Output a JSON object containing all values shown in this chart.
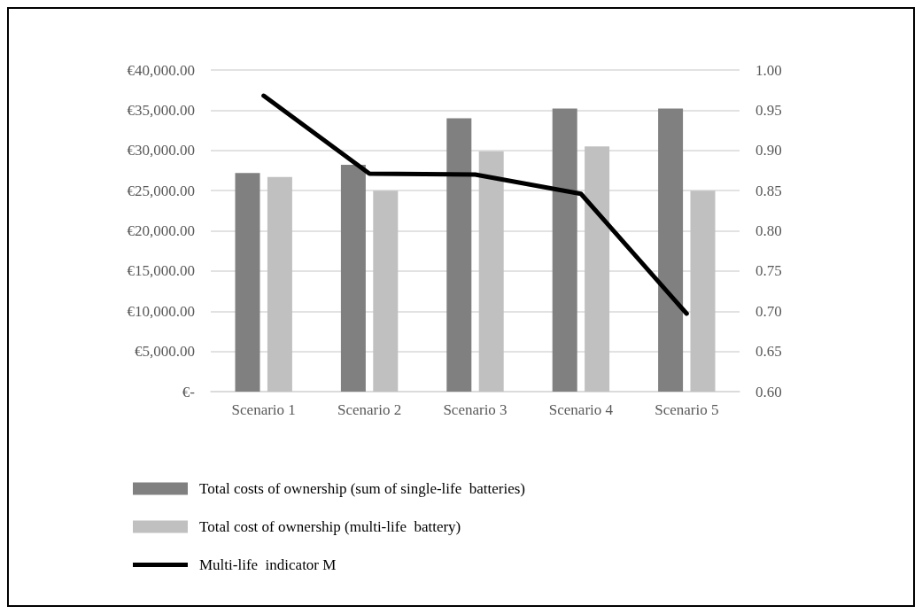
{
  "chart_data": {
    "type": "bar",
    "categories": [
      "Scenario 1",
      "Scenario 2",
      "Scenario 3",
      "Scenario 4",
      "Scenario 5"
    ],
    "series": [
      {
        "name": "Total costs of ownership (sum of single-life  batteries)",
        "color": "#808080",
        "values": [
          27200,
          28200,
          34000,
          35200,
          35200
        ]
      },
      {
        "name": "Total cost of ownership (multi-life  battery)",
        "color": "#c0c0c0",
        "values": [
          26700,
          25000,
          29900,
          30500,
          25000
        ]
      },
      {
        "name": "Multi-life  indicator M",
        "type": "line",
        "axis": "y2",
        "color": "#000000",
        "values": [
          0.968,
          0.871,
          0.87,
          0.846,
          0.697
        ]
      }
    ],
    "ylim": [
      0,
      40000
    ],
    "yticks": [
      {
        "value": 0,
        "label": "€-"
      },
      {
        "value": 5000,
        "label": "€5,000.00"
      },
      {
        "value": 10000,
        "label": "€10,000.00"
      },
      {
        "value": 15000,
        "label": "€15,000.00"
      },
      {
        "value": 20000,
        "label": "€20,000.00"
      },
      {
        "value": 25000,
        "label": "€25,000.00"
      },
      {
        "value": 30000,
        "label": "€30,000.00"
      },
      {
        "value": 35000,
        "label": "€35,000.00"
      },
      {
        "value": 40000,
        "label": "€40,000.00"
      }
    ],
    "y2lim": [
      0.6,
      1.0
    ],
    "y2ticks": [
      {
        "value": 0.6,
        "label": "0.60"
      },
      {
        "value": 0.65,
        "label": "0.65"
      },
      {
        "value": 0.7,
        "label": "0.70"
      },
      {
        "value": 0.75,
        "label": "0.75"
      },
      {
        "value": 0.8,
        "label": "0.80"
      },
      {
        "value": 0.85,
        "label": "0.85"
      },
      {
        "value": 0.9,
        "label": "0.90"
      },
      {
        "value": 0.95,
        "label": "0.95"
      },
      {
        "value": 1.0,
        "label": "1.00"
      }
    ],
    "grid": "y",
    "legend": "bottom left",
    "marker": "none"
  }
}
